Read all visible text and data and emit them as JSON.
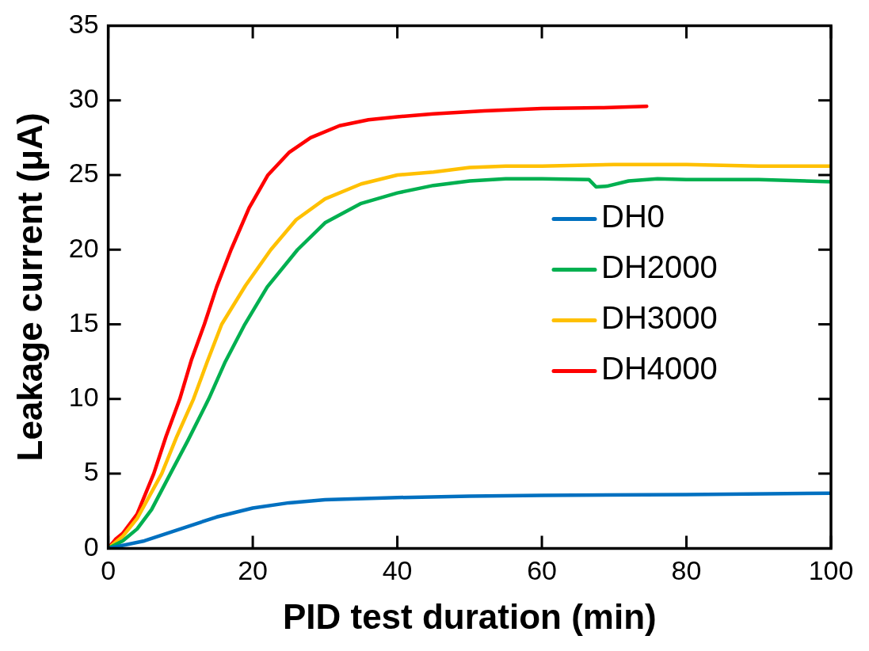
{
  "chart_data": {
    "type": "line",
    "xlabel": "PID test duration (min)",
    "ylabel": "Leakage current (μA)",
    "xlim": [
      0,
      100
    ],
    "xticks": [
      0,
      20,
      40,
      60,
      80,
      100
    ],
    "ylim": [
      0,
      35
    ],
    "yticks": [
      0,
      5,
      10,
      15,
      20,
      25,
      30,
      35
    ],
    "grid": false,
    "legend": "right",
    "marker": "none",
    "line_style": "solid",
    "series": [
      {
        "name": "DH0",
        "color": "#0070c0",
        "x": [
          0,
          5,
          10,
          15,
          20,
          25,
          30,
          40,
          50,
          60,
          80,
          100
        ],
        "values": [
          0,
          0.5,
          1.3,
          2.1,
          2.7,
          3.05,
          3.25,
          3.4,
          3.5,
          3.55,
          3.6,
          3.7
        ]
      },
      {
        "name": "DH2000",
        "color": "#00b050",
        "x": [
          0,
          2,
          4,
          6,
          8.6,
          11,
          13.9,
          16.2,
          18.9,
          22,
          26.2,
          30,
          35,
          40,
          45,
          50,
          55,
          60,
          66.5,
          67.5,
          69,
          72,
          76,
          80,
          90,
          100
        ],
        "values": [
          0,
          0.5,
          1.3,
          2.6,
          5,
          7.2,
          10,
          12.5,
          15,
          17.5,
          20,
          21.8,
          23.1,
          23.8,
          24.3,
          24.6,
          24.75,
          24.75,
          24.7,
          24.2,
          24.25,
          24.6,
          24.75,
          24.7,
          24.7,
          24.55
        ]
      },
      {
        "name": "DH3000",
        "color": "#ffc000",
        "x": [
          0,
          1,
          2,
          4,
          7.4,
          9.5,
          11.8,
          13.7,
          15.7,
          19,
          22.5,
          26,
          30,
          35,
          40,
          45,
          50,
          55,
          60,
          70,
          80,
          90,
          100
        ],
        "values": [
          0,
          0.4,
          0.8,
          2,
          5,
          7.5,
          10,
          12.5,
          15,
          17.6,
          20,
          22,
          23.4,
          24.4,
          25,
          25.2,
          25.5,
          25.6,
          25.6,
          25.7,
          25.7,
          25.6,
          25.6
        ]
      },
      {
        "name": "DH4000",
        "color": "#ff0000",
        "x": [
          0,
          1,
          2,
          4,
          6.3,
          8,
          9.9,
          11.5,
          13.3,
          15,
          17,
          19.5,
          22.1,
          25,
          28,
          32,
          36,
          40,
          45,
          52,
          60,
          68,
          74.5
        ],
        "values": [
          0,
          0.6,
          1,
          2.3,
          5,
          7.5,
          10,
          12.6,
          15,
          17.5,
          20,
          22.8,
          25,
          26.5,
          27.5,
          28.3,
          28.7,
          28.9,
          29.1,
          29.3,
          29.45,
          29.5,
          29.6
        ]
      }
    ]
  }
}
